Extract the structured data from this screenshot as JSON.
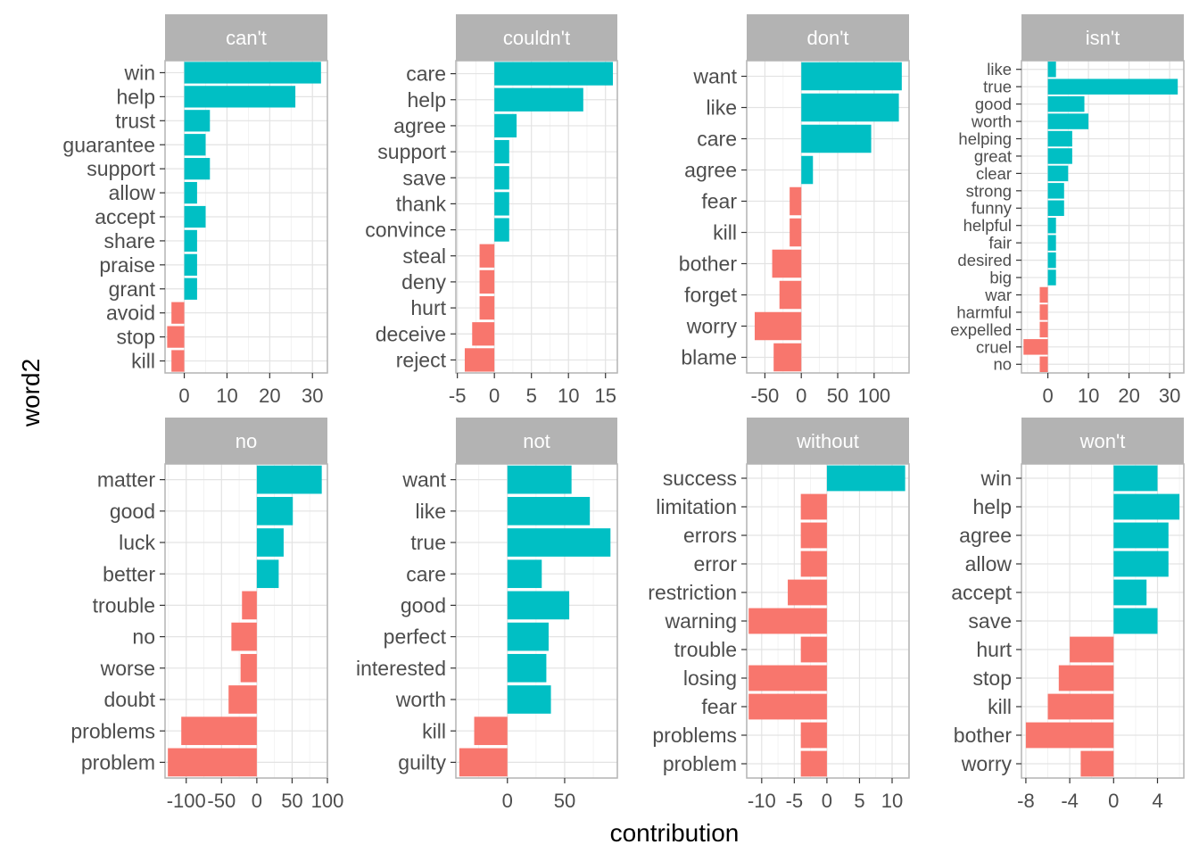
{
  "chart_data": {
    "type": "bar",
    "orientation": "horizontal",
    "faceted": true,
    "facet_layout": "2 rows x 4 columns",
    "xlabel": "contribution",
    "ylabel": "word2",
    "positive_color": "#00BFC4",
    "negative_color": "#F8766D",
    "strip_color": "#B3B3B3",
    "grid": true,
    "panels": [
      {
        "title": "can't",
        "xlim": [
          -4.5,
          33.5
        ],
        "xticks": [
          0,
          10,
          20,
          30
        ],
        "xtick_labels": [
          "0",
          "10",
          "20",
          "30"
        ],
        "words": [
          "win",
          "help",
          "trust",
          "guarantee",
          "support",
          "allow",
          "accept",
          "share",
          "praise",
          "grant",
          "avoid",
          "stop",
          "kill"
        ],
        "values": [
          32,
          26,
          6,
          5,
          6,
          3,
          5,
          3,
          3,
          3,
          -3,
          -4,
          -3
        ]
      },
      {
        "title": "couldn't",
        "xlim": [
          -5.2,
          16.6
        ],
        "xticks": [
          -5,
          0,
          5,
          10,
          15
        ],
        "xtick_labels": [
          "-5",
          "0",
          "5",
          "10",
          "15"
        ],
        "words": [
          "care",
          "help",
          "agree",
          "support",
          "save",
          "thank",
          "convince",
          "steal",
          "deny",
          "hurt",
          "deceive",
          "reject"
        ],
        "values": [
          16,
          12,
          3,
          2,
          2,
          2,
          2,
          -2,
          -2,
          -2,
          -3,
          -4
        ]
      },
      {
        "title": "don't",
        "xlim": [
          -75,
          148
        ],
        "xticks": [
          -50,
          0,
          50,
          100
        ],
        "xtick_labels": [
          "-50",
          "0",
          "50",
          "100"
        ],
        "words": [
          "want",
          "like",
          "care",
          "agree",
          "fear",
          "kill",
          "bother",
          "forget",
          "worry",
          "blame"
        ],
        "values": [
          138,
          134,
          96,
          16,
          -16,
          -16,
          -40,
          -30,
          -64,
          -38
        ]
      },
      {
        "title": "isn't",
        "xlim": [
          -6.5,
          33.5
        ],
        "xticks": [
          0,
          10,
          20,
          30
        ],
        "xtick_labels": [
          "0",
          "10",
          "20",
          "30"
        ],
        "words": [
          "like",
          "true",
          "good",
          "worth",
          "helping",
          "great",
          "clear",
          "strong",
          "funny",
          "helpful",
          "fair",
          "desired",
          "big",
          "war",
          "harmful",
          "expelled",
          "cruel",
          "no"
        ],
        "values": [
          2,
          32,
          9,
          10,
          6,
          6,
          5,
          4,
          4,
          2,
          2,
          2,
          2,
          -2,
          -2,
          -2,
          -6,
          -2
        ]
      },
      {
        "title": "no",
        "xlim": [
          -130,
          100
        ],
        "xticks": [
          -100,
          -50,
          0,
          50,
          100
        ],
        "xtick_labels": [
          "-100",
          "-50",
          "0",
          "50",
          "100"
        ],
        "words": [
          "matter",
          "good",
          "luck",
          "better",
          "trouble",
          "no",
          "worse",
          "doubt",
          "problems",
          "problem"
        ],
        "values": [
          92,
          51,
          38,
          31,
          -21,
          -36,
          -23,
          -40,
          -107,
          -126
        ]
      },
      {
        "title": "not",
        "xlim": [
          -45,
          96
        ],
        "xticks": [
          0,
          50
        ],
        "xtick_labels": [
          "0",
          "50"
        ],
        "words": [
          "want",
          "like",
          "true",
          "care",
          "good",
          "perfect",
          "interested",
          "worth",
          "kill",
          "guilty"
        ],
        "values": [
          56,
          72,
          90,
          30,
          54,
          36,
          34,
          38,
          -29,
          -42
        ]
      },
      {
        "title": "without",
        "xlim": [
          -12.3,
          12.6
        ],
        "xticks": [
          -10,
          -5,
          0,
          5,
          10
        ],
        "xtick_labels": [
          "-10",
          "-5",
          "0",
          "5",
          "10"
        ],
        "words": [
          "success",
          "limitation",
          "errors",
          "error",
          "restriction",
          "warning",
          "trouble",
          "losing",
          "fear",
          "problems",
          "problem"
        ],
        "values": [
          12,
          -4,
          -4,
          -4,
          -6,
          -12,
          -4,
          -12,
          -12,
          -4,
          -4
        ]
      },
      {
        "title": "won't",
        "xlim": [
          -8.4,
          6.4
        ],
        "xticks": [
          -8,
          -4,
          0,
          4
        ],
        "xtick_labels": [
          "-8",
          "-4",
          "0",
          "4"
        ],
        "words": [
          "win",
          "help",
          "agree",
          "allow",
          "accept",
          "save",
          "hurt",
          "stop",
          "kill",
          "bother",
          "worry"
        ],
        "values": [
          4,
          6,
          5,
          5,
          3,
          4,
          -4,
          -5,
          -6,
          -8,
          -3
        ]
      }
    ]
  }
}
